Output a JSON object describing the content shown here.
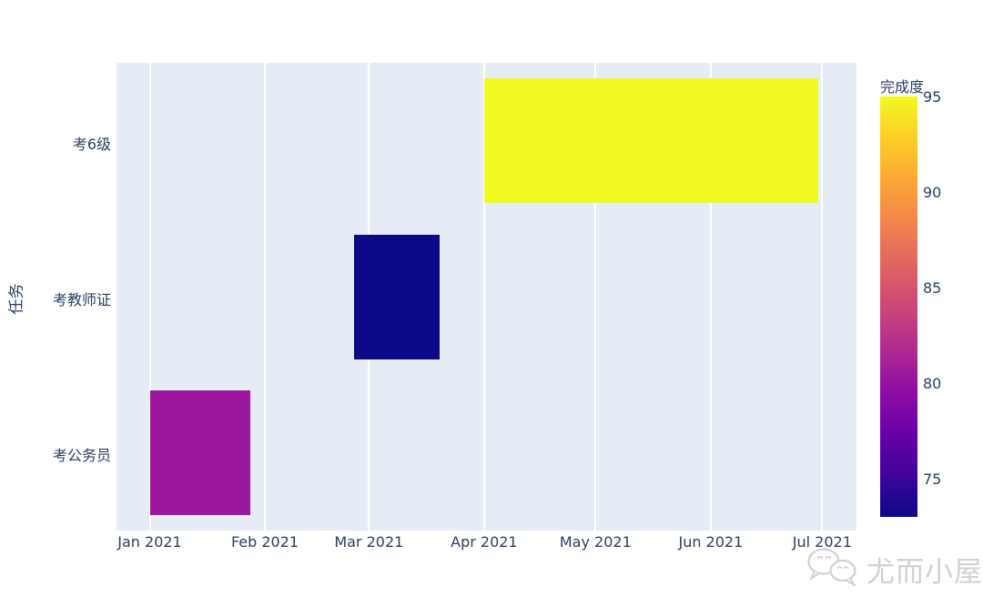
{
  "colors": {
    "plot_background": "#e5ecf6",
    "gridline": "#ffffff",
    "text": "#2a3f5f",
    "watermark": "#c9c9c9"
  },
  "chart": {
    "y_axis_title": "任务",
    "categories": [
      "考6级",
      "考教师证",
      "考公务员"
    ],
    "x_ticks": [
      "Jan 2021",
      "Feb 2021",
      "Mar 2021",
      "Apr 2021",
      "May 2021",
      "Jun 2021",
      "Jul 2021"
    ],
    "colorbar": {
      "title": "完成度",
      "tick_values": [
        95,
        90,
        85,
        80,
        75
      ],
      "min": 73,
      "max": 95
    }
  },
  "chart_data": {
    "type": "gantt",
    "title": "",
    "xlabel": "",
    "ylabel": "任务",
    "x_range": [
      "2020-12-23",
      "2021-07-10"
    ],
    "colorscale": "plasma",
    "color_field": "完成度",
    "color_range": [
      73,
      95
    ],
    "grid": true,
    "legend_position": "colorbar-right",
    "tasks": [
      {
        "task": "考6级",
        "start": "2021-04-01",
        "end": "2021-06-30",
        "completion": 95,
        "color": "#f0f921"
      },
      {
        "task": "考教师证",
        "start": "2021-02-25",
        "end": "2021-03-20",
        "completion": 73,
        "color": "#0d0887"
      },
      {
        "task": "考公务员",
        "start": "2021-01-01",
        "end": "2021-01-28",
        "completion": 80,
        "color": "#9c179e"
      }
    ]
  },
  "watermark": {
    "label": "尤而小屋",
    "icon": "wechat-bubbles-icon"
  }
}
